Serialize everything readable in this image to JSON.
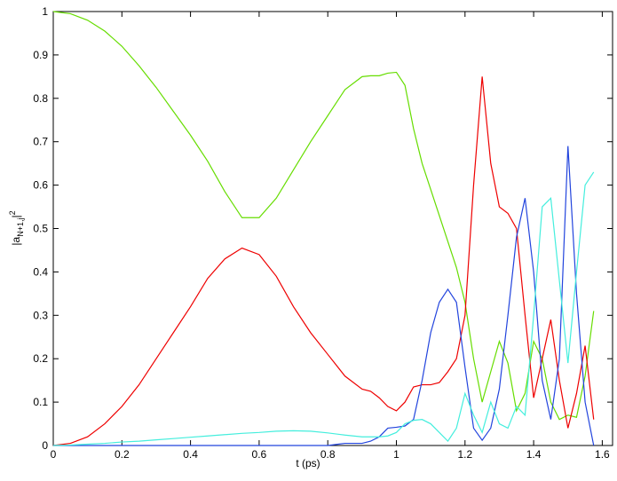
{
  "chart_data": {
    "type": "line",
    "xlabel": "t (ps)",
    "ylabel": {
      "open": "|a",
      "sub": "N+1,j",
      "close": "|",
      "sup": "2"
    },
    "x": [
      0,
      0.05,
      0.1,
      0.15,
      0.2,
      0.25,
      0.3,
      0.35,
      0.4,
      0.45,
      0.5,
      0.55,
      0.6,
      0.65,
      0.7,
      0.75,
      0.8,
      0.85,
      0.9,
      0.925,
      0.95,
      0.975,
      1.0,
      1.025,
      1.05,
      1.075,
      1.1,
      1.125,
      1.15,
      1.175,
      1.2,
      1.225,
      1.25,
      1.275,
      1.3,
      1.325,
      1.35,
      1.375,
      1.4,
      1.425,
      1.45,
      1.475,
      1.5,
      1.525,
      1.55,
      1.575
    ],
    "series": [
      {
        "color": "#66dd00",
        "values": [
          1,
          0.995,
          0.98,
          0.955,
          0.92,
          0.875,
          0.825,
          0.77,
          0.715,
          0.655,
          0.585,
          0.525,
          0.525,
          0.57,
          0.635,
          0.7,
          0.76,
          0.82,
          0.85,
          0.852,
          0.852,
          0.858,
          0.86,
          0.83,
          0.73,
          0.65,
          0.59,
          0.53,
          0.47,
          0.41,
          0.33,
          0.2,
          0.1,
          0.17,
          0.24,
          0.19,
          0.08,
          0.12,
          0.24,
          0.2,
          0.1,
          0.06,
          0.07,
          0.065,
          0.16,
          0.31
        ]
      },
      {
        "color": "#ee0000",
        "values": [
          0,
          0.005,
          0.02,
          0.05,
          0.09,
          0.14,
          0.2,
          0.26,
          0.32,
          0.385,
          0.43,
          0.455,
          0.44,
          0.39,
          0.32,
          0.26,
          0.21,
          0.16,
          0.13,
          0.125,
          0.11,
          0.09,
          0.08,
          0.1,
          0.135,
          0.14,
          0.14,
          0.145,
          0.17,
          0.2,
          0.3,
          0.6,
          0.85,
          0.65,
          0.55,
          0.535,
          0.5,
          0.3,
          0.11,
          0.2,
          0.29,
          0.15,
          0.04,
          0.12,
          0.23,
          0.06
        ]
      },
      {
        "color": "#2244dd",
        "values": [
          0,
          0,
          0,
          0,
          0,
          0,
          0,
          0,
          0,
          0,
          0,
          0,
          0,
          0,
          0,
          0,
          0,
          0.005,
          0.005,
          0.01,
          0.02,
          0.04,
          0.042,
          0.045,
          0.06,
          0.15,
          0.26,
          0.33,
          0.36,
          0.33,
          0.18,
          0.04,
          0.012,
          0.04,
          0.13,
          0.3,
          0.48,
          0.57,
          0.4,
          0.15,
          0.06,
          0.2,
          0.69,
          0.35,
          0.1,
          0
        ]
      },
      {
        "color": "#44eedd",
        "values": [
          0,
          0.001,
          0.003,
          0.005,
          0.008,
          0.01,
          0.013,
          0.016,
          0.019,
          0.022,
          0.025,
          0.028,
          0.03,
          0.033,
          0.034,
          0.033,
          0.029,
          0.024,
          0.02,
          0.02,
          0.02,
          0.022,
          0.03,
          0.05,
          0.058,
          0.06,
          0.05,
          0.03,
          0.01,
          0.04,
          0.12,
          0.07,
          0.03,
          0.1,
          0.05,
          0.04,
          0.09,
          0.07,
          0.3,
          0.55,
          0.57,
          0.38,
          0.19,
          0.4,
          0.6,
          0.63
        ]
      }
    ],
    "xlim": [
      0,
      1.63
    ],
    "ylim": [
      0,
      1
    ],
    "xticks": [
      0,
      0.2,
      0.4,
      0.6,
      0.8,
      1,
      1.2,
      1.4,
      1.6
    ],
    "yticks": [
      0,
      0.1,
      0.2,
      0.3,
      0.4,
      0.5,
      0.6,
      0.7,
      0.8,
      0.9,
      1
    ]
  }
}
